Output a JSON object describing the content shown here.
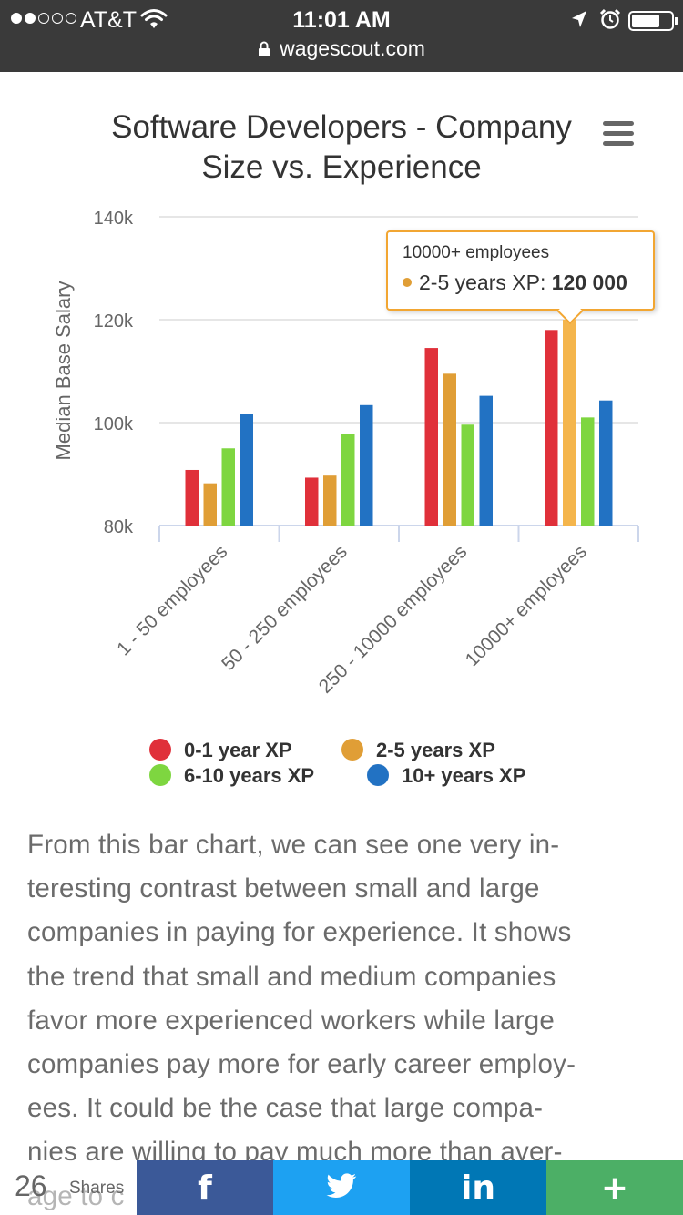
{
  "status_bar": {
    "carrier": "AT&T",
    "time": "11:01 AM",
    "url": "wagescout.com"
  },
  "chart_data": {
    "type": "bar",
    "title": "Software Developers - Company Size vs. Experience",
    "title_lines": [
      "Software Developers - Company",
      "Size vs. Experience"
    ],
    "xlabel": "",
    "ylabel": "Median Base Salary",
    "ylim": [
      80000,
      140000
    ],
    "yticks": [
      80000,
      100000,
      120000,
      140000
    ],
    "ytick_labels": [
      "80k",
      "100k",
      "120k",
      "140k"
    ],
    "grid": true,
    "legend_position": "bottom",
    "categories": [
      "1 - 50 employees",
      "50 - 250 employees",
      "250 - 10000 employees",
      "10000+ employees"
    ],
    "series": [
      {
        "name": "0-1 year XP",
        "color": "#e0303a",
        "values": [
          90800,
          89300,
          114500,
          118000
        ]
      },
      {
        "name": "2-5 years XP",
        "color": "#e09e36",
        "values": [
          88200,
          89700,
          109500,
          120000
        ]
      },
      {
        "name": "6-10 years XP",
        "color": "#7ed640",
        "values": [
          95000,
          97800,
          99600,
          101000
        ]
      },
      {
        "name": "10+ years XP",
        "color": "#2272c3",
        "values": [
          101700,
          103400,
          105200,
          104300
        ]
      }
    ],
    "tooltip": {
      "category": "10000+ employees",
      "series": "2-5 years XP",
      "value_label": "120 000"
    }
  },
  "article": {
    "lines": [
      "From this bar chart, we can see one very in-",
      "teresting contrast between small and large",
      "companies in paying for experience. It shows",
      "the trend that small and medium companies",
      "favor more experienced workers while large",
      "companies pay more for early career employ-",
      "ees. It could be the case that large compa-",
      "nies are willing to pay much more than aver-",
      "age to c"
    ]
  },
  "share_bar": {
    "count": "26",
    "label": "Shares",
    "facebook": "f",
    "twitter": "twitter",
    "linkedin": "in",
    "more": "+"
  },
  "icons": [
    "wifi-icon",
    "location-arrow-icon",
    "alarm-icon",
    "battery-icon",
    "lock-icon",
    "menu-icon",
    "twitter-bird-icon"
  ],
  "colors": {
    "status_bg": "#3a3a3a",
    "tooltip_border": "#f2a632",
    "facebook": "#3b5998",
    "twitter": "#1da1f2",
    "linkedin": "#0077b5",
    "more": "#4caf66"
  }
}
